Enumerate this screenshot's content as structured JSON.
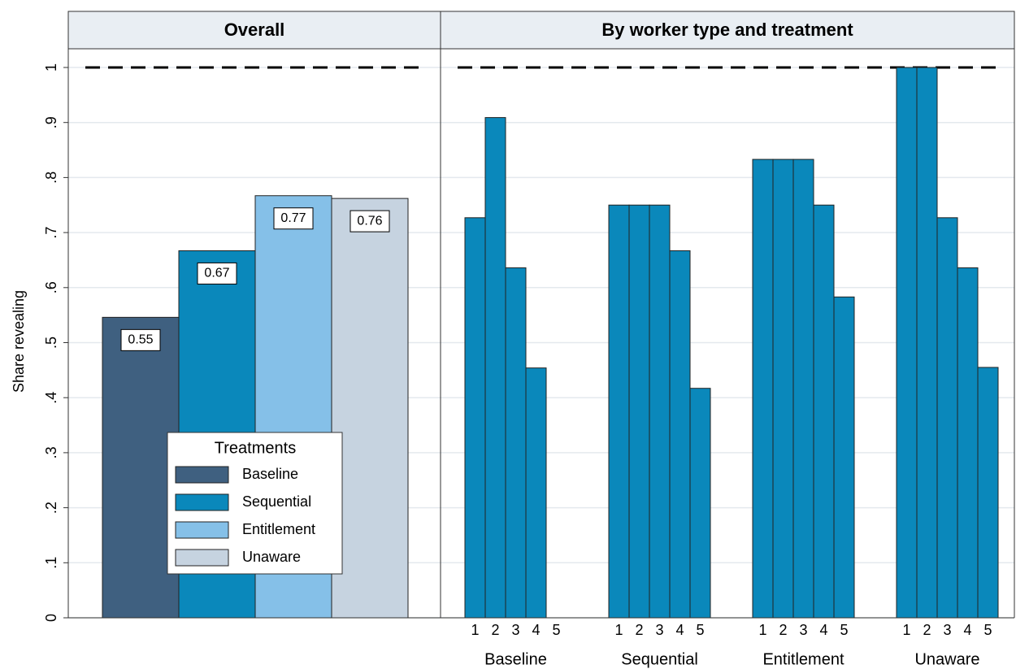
{
  "chart_data": [
    {
      "type": "bar",
      "title": "Overall",
      "ylabel": "Share revealing",
      "categories": [
        "Baseline",
        "Sequential",
        "Entitlement",
        "Unaware"
      ],
      "values": [
        0.546,
        0.667,
        0.767,
        0.762
      ],
      "value_labels": [
        "0.55",
        "0.67",
        "0.77",
        "0.76"
      ],
      "colors": [
        "#3f6080",
        "#0a88bb",
        "#85c0e8",
        "#c6d3e0"
      ],
      "ylim": [
        0,
        1
      ],
      "yticks": [
        0,
        {
          "value": 0.1,
          "label": ".1"
        },
        {
          "value": 0.2,
          "label": ".2"
        },
        {
          "value": 0.3,
          "label": ".3"
        },
        {
          "value": 0.4,
          "label": ".4"
        },
        {
          "value": 0.5,
          "label": ".5"
        },
        {
          "value": 0.6,
          "label": ".6"
        },
        {
          "value": 0.7,
          "label": ".7"
        },
        {
          "value": 0.8,
          "label": ".8"
        },
        {
          "value": 0.9,
          "label": ".9"
        },
        1
      ],
      "grid": true,
      "ref_line": 1,
      "legend_title": "Treatments",
      "legend": "lower center"
    },
    {
      "type": "grouped_bar",
      "title": "By worker type and treatment",
      "categories": [
        "1",
        "2",
        "3",
        "4",
        "5"
      ],
      "groups": [
        {
          "name": "Baseline",
          "values": [
            0.727,
            0.909,
            0.636,
            0.454,
            0
          ]
        },
        {
          "name": "Sequential",
          "values": [
            0.75,
            0.75,
            0.75,
            0.667,
            0.417
          ]
        },
        {
          "name": "Entitlement",
          "values": [
            0.833,
            0.833,
            0.833,
            0.75,
            0.583
          ]
        },
        {
          "name": "Unaware",
          "values": [
            1,
            1,
            0.727,
            0.636,
            0.455
          ]
        }
      ],
      "color": "#0a88bb",
      "ylim": [
        0,
        1
      ],
      "yticks": [
        0,
        0.1,
        0.2,
        0.3,
        0.4,
        0.5,
        0.6,
        0.7,
        0.8,
        0.9,
        1
      ],
      "grid": true,
      "ref_line": 1
    }
  ]
}
